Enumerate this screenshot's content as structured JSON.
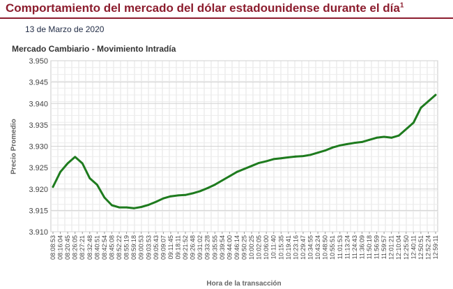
{
  "header": {
    "title": "Comportamiento del mercado del dólar estadounidense durante el día",
    "title_sup": "1",
    "date": "13 de Marzo de 2020",
    "accent_color": "#8c1d2e"
  },
  "chart_data": {
    "type": "line",
    "title": "Mercado Cambiario - Movimiento Intradía",
    "xlabel": "Hora de la transacción",
    "ylabel": "Precio Promedio",
    "ylim": [
      3.91,
      3.95
    ],
    "yticks": [
      "3.950",
      "3.945",
      "3.940",
      "3.935",
      "3.930",
      "3.925",
      "3.920",
      "3.915",
      "3.910"
    ],
    "grid": true,
    "line_color": "#1e7b1e",
    "x": [
      "08:08:53",
      "08:16:04",
      "08:20:45",
      "08:26:05",
      "08:27:21",
      "08:32:48",
      "08:40:51",
      "08:42:54",
      "08:45:08",
      "08:52:22",
      "08:55:19",
      "08:59:18",
      "09:00:53",
      "09:03:53",
      "09:05:43",
      "09:09:07",
      "09:11:45",
      "09:18:11",
      "09:21:52",
      "09:26:48",
      "09:31:02",
      "09:33:28",
      "09:35:55",
      "09:39:54",
      "09:44:00",
      "09:46:14",
      "09:50:25",
      "10:00:25",
      "10:02:05",
      "10:06:00",
      "10:11:40",
      "10:15:35",
      "10:19:41",
      "10:23:16",
      "10:29:47",
      "10:34:55",
      "10:43:24",
      "10:48:50",
      "10:55:51",
      "11:01:53",
      "11:13:24",
      "11:24:43",
      "11:36:09",
      "11:50:18",
      "11:56:59",
      "11:59:57",
      "12:01:21",
      "12:10:04",
      "12:25:50",
      "12:40:11",
      "12:50:51",
      "12:52:24",
      "12:59:11"
    ],
    "series": [
      {
        "values": [
          3.9205,
          3.924,
          3.926,
          3.9275,
          3.926,
          3.9225,
          3.921,
          3.918,
          3.9162,
          3.9157,
          3.9157,
          3.9155,
          3.9158,
          3.9163,
          3.917,
          3.9178,
          3.9183,
          3.9185,
          3.9186,
          3.919,
          3.9195,
          3.9202,
          3.921,
          3.922,
          3.923,
          3.924,
          3.9247,
          3.9254,
          3.9261,
          3.9265,
          3.927,
          3.9272,
          3.9274,
          3.9276,
          3.9277,
          3.928,
          3.9285,
          3.929,
          3.9297,
          3.9302,
          3.9305,
          3.9308,
          3.931,
          3.9315,
          3.932,
          3.9322,
          3.932,
          3.9325,
          3.934,
          3.9355,
          3.939,
          3.9405,
          3.942
        ]
      }
    ]
  }
}
